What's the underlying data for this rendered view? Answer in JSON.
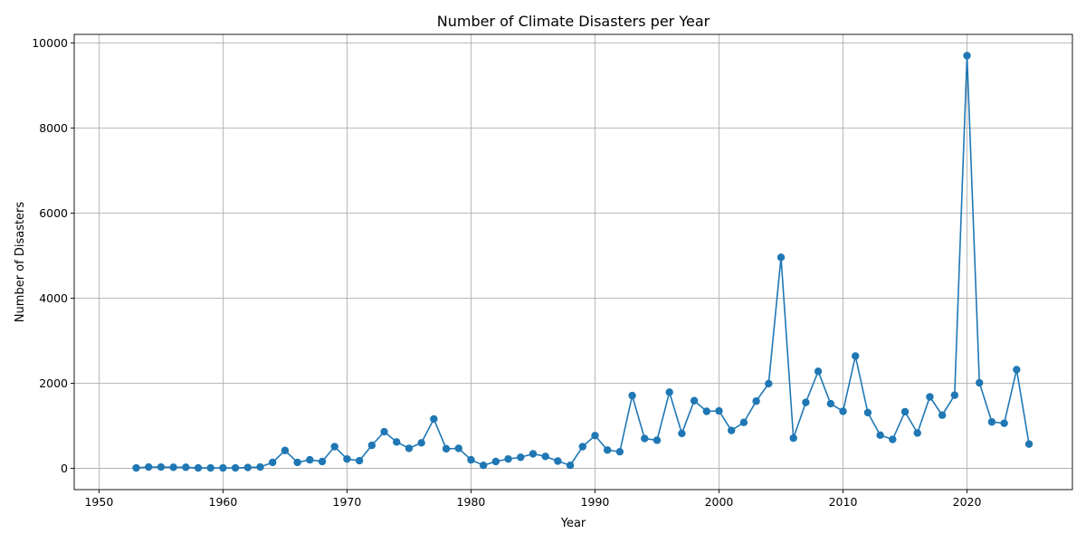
{
  "chart_data": {
    "type": "line",
    "title": "Number of Climate Disasters per Year",
    "xlabel": "Year",
    "ylabel": "Number of Disasters",
    "xlim": [
      1948,
      2028.5
    ],
    "ylim": [
      -500,
      10200
    ],
    "xticks": [
      1950,
      1960,
      1970,
      1980,
      1990,
      2000,
      2010,
      2020
    ],
    "yticks": [
      0,
      2000,
      4000,
      6000,
      8000,
      10000
    ],
    "grid": true,
    "marker": "circle",
    "color": "#1f77b4",
    "series": [
      {
        "x": [
          1953,
          1954,
          1955,
          1956,
          1957,
          1958,
          1959,
          1960,
          1961,
          1962,
          1963,
          1964,
          1965,
          1966,
          1967,
          1968,
          1969,
          1970,
          1971,
          1972,
          1973,
          1974,
          1975,
          1976,
          1977,
          1978,
          1979,
          1980,
          1981,
          1982,
          1983,
          1984,
          1985,
          1986,
          1987,
          1988,
          1989,
          1990,
          1991,
          1992,
          1993,
          1994,
          1995,
          1996,
          1997,
          1998,
          1999,
          2000,
          2001,
          2002,
          2003,
          2004,
          2005,
          2006,
          2007,
          2008,
          2009,
          2010,
          2011,
          2012,
          2013,
          2014,
          2015,
          2016,
          2017,
          2018,
          2019,
          2020,
          2021,
          2022,
          2023,
          2024,
          2025
        ],
        "values": [
          10,
          30,
          30,
          25,
          25,
          10,
          10,
          10,
          10,
          20,
          30,
          140,
          420,
          140,
          200,
          160,
          510,
          220,
          180,
          540,
          860,
          620,
          470,
          600,
          1160,
          460,
          470,
          200,
          70,
          160,
          220,
          260,
          340,
          280,
          170,
          70,
          510,
          770,
          430,
          390,
          1710,
          700,
          660,
          1790,
          820,
          1590,
          1340,
          1350,
          890,
          1080,
          1580,
          1990,
          4960,
          710,
          1550,
          2280,
          1520,
          1340,
          2640,
          1310,
          780,
          680,
          1330,
          830,
          1680,
          1250,
          1720,
          9700,
          2010,
          1090,
          1060,
          2320,
          570
        ]
      }
    ]
  }
}
